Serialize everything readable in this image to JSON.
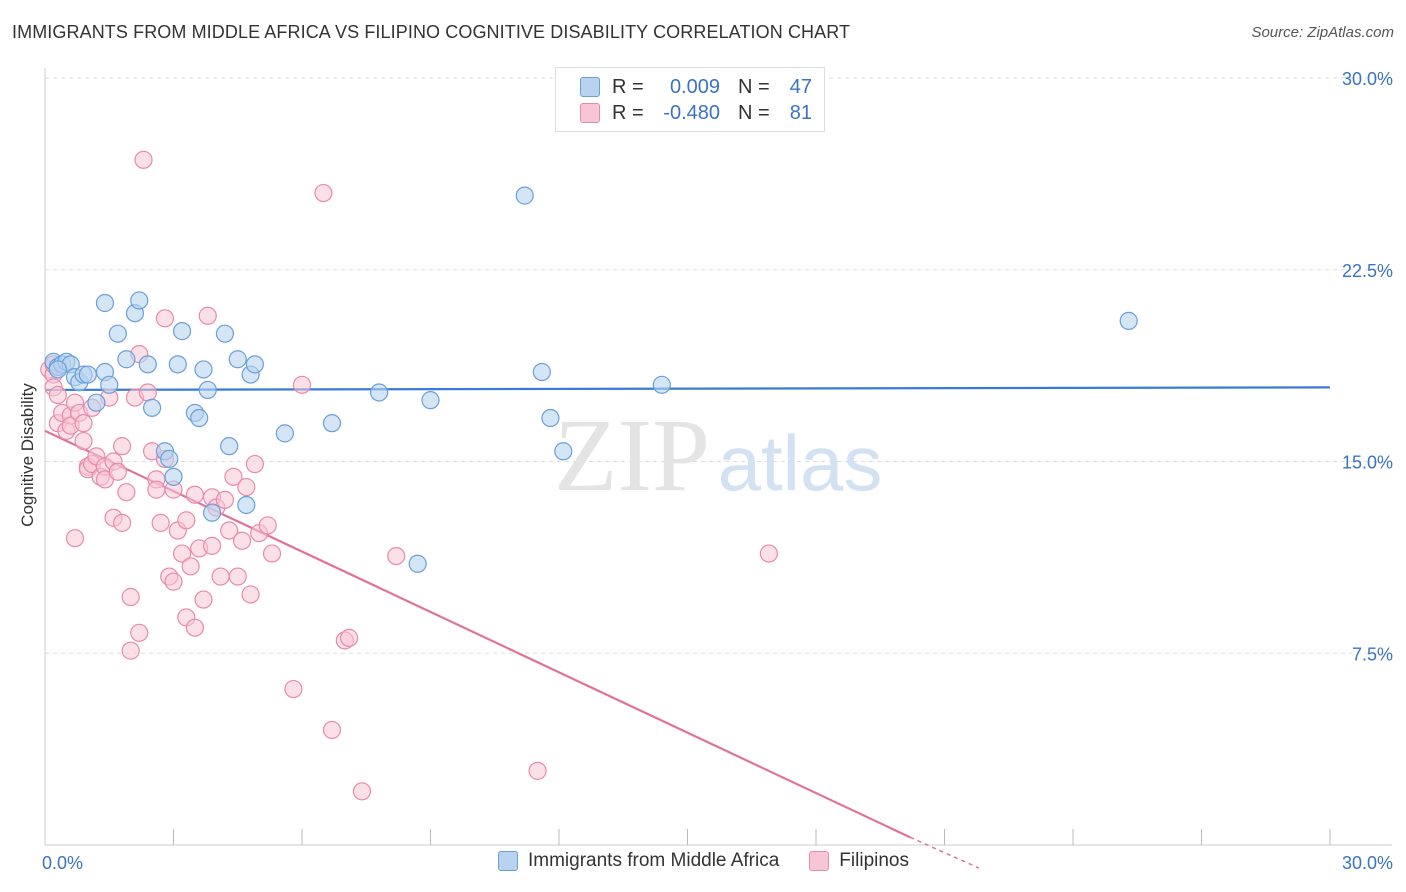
{
  "title": "IMMIGRANTS FROM MIDDLE AFRICA VS FILIPINO COGNITIVE DISABILITY CORRELATION CHART",
  "source": "Source: ZipAtlas.com",
  "watermark": {
    "zip": "ZIP",
    "atlas": "atlas"
  },
  "legend": {
    "rows": [
      {
        "r_label": "R =",
        "r_value": "0.009",
        "n_label": "N =",
        "n_value": "47"
      },
      {
        "r_label": "R =",
        "r_value": "-0.480",
        "n_label": "N =",
        "n_value": "81"
      }
    ]
  },
  "colors": {
    "blue_fill": "#b8d3f0",
    "blue_stroke": "#6a9fd8",
    "blue_line": "#3a7bd5",
    "pink_fill": "#f7c6d6",
    "pink_stroke": "#e98aaa",
    "pink_line": "#e0739a",
    "axis_text": "#3a73c4",
    "grid": "#dddddd"
  },
  "chart_data": {
    "type": "scatter",
    "title": "IMMIGRANTS FROM MIDDLE AFRICA VS FILIPINO COGNITIVE DISABILITY CORRELATION CHART",
    "xlabel": "",
    "ylabel": "Cognitive Disability",
    "xlim": [
      0,
      30
    ],
    "ylim": [
      0,
      30
    ],
    "x_tick_labels": [
      "0.0%",
      "30.0%"
    ],
    "y_ticks": [
      7.5,
      15.0,
      22.5,
      30.0
    ],
    "y_tick_labels": [
      "7.5%",
      "15.0%",
      "22.5%",
      "30.0%"
    ],
    "series": [
      {
        "name": "Immigrants from Middle Africa",
        "color": "blue",
        "trend": {
          "x": [
            0,
            30
          ],
          "y": [
            17.8,
            17.9
          ]
        },
        "points": [
          [
            0.2,
            18.9
          ],
          [
            0.3,
            18.7
          ],
          [
            0.4,
            18.8
          ],
          [
            0.5,
            18.9
          ],
          [
            0.6,
            18.8
          ],
          [
            0.7,
            18.3
          ],
          [
            0.8,
            18.1
          ],
          [
            0.9,
            18.4
          ],
          [
            1.0,
            18.4
          ],
          [
            1.2,
            17.3
          ],
          [
            1.4,
            18.5
          ],
          [
            1.5,
            18.0
          ],
          [
            1.4,
            21.2
          ],
          [
            1.7,
            20.0
          ],
          [
            1.9,
            19.0
          ],
          [
            2.1,
            20.8
          ],
          [
            2.2,
            21.3
          ],
          [
            2.4,
            18.8
          ],
          [
            2.5,
            17.1
          ],
          [
            2.8,
            15.4
          ],
          [
            2.9,
            15.1
          ],
          [
            3.0,
            14.4
          ],
          [
            3.1,
            18.8
          ],
          [
            3.2,
            20.1
          ],
          [
            3.5,
            16.9
          ],
          [
            3.6,
            16.7
          ],
          [
            3.7,
            18.6
          ],
          [
            3.8,
            17.8
          ],
          [
            3.9,
            13.0
          ],
          [
            4.2,
            20.0
          ],
          [
            4.3,
            15.6
          ],
          [
            4.5,
            19.0
          ],
          [
            4.7,
            13.3
          ],
          [
            4.8,
            18.4
          ],
          [
            4.9,
            18.8
          ],
          [
            5.6,
            16.1
          ],
          [
            6.7,
            16.5
          ],
          [
            7.8,
            17.7
          ],
          [
            8.7,
            11.0
          ],
          [
            9.0,
            17.4
          ],
          [
            11.2,
            25.4
          ],
          [
            11.6,
            18.5
          ],
          [
            11.8,
            16.7
          ],
          [
            12.1,
            15.4
          ],
          [
            14.4,
            18.0
          ],
          [
            25.3,
            20.5
          ],
          [
            0.3,
            18.6
          ]
        ]
      },
      {
        "name": "Filipinos",
        "color": "pink",
        "trend": {
          "x": [
            0,
            20.2
          ],
          "y": [
            16.2,
            0.3
          ]
        },
        "points": [
          [
            0.1,
            18.6
          ],
          [
            0.2,
            18.4
          ],
          [
            0.2,
            17.9
          ],
          [
            0.3,
            17.6
          ],
          [
            0.3,
            16.5
          ],
          [
            0.4,
            16.9
          ],
          [
            0.5,
            16.2
          ],
          [
            0.6,
            16.8
          ],
          [
            0.6,
            16.4
          ],
          [
            0.7,
            17.3
          ],
          [
            0.7,
            12.0
          ],
          [
            0.8,
            16.9
          ],
          [
            0.9,
            16.5
          ],
          [
            0.9,
            15.8
          ],
          [
            1.0,
            14.8
          ],
          [
            1.0,
            14.7
          ],
          [
            1.1,
            17.1
          ],
          [
            1.1,
            14.9
          ],
          [
            1.2,
            15.2
          ],
          [
            1.3,
            14.4
          ],
          [
            1.4,
            14.8
          ],
          [
            1.4,
            14.3
          ],
          [
            1.5,
            17.5
          ],
          [
            1.6,
            15.0
          ],
          [
            1.6,
            12.8
          ],
          [
            1.7,
            14.6
          ],
          [
            1.8,
            12.6
          ],
          [
            1.8,
            15.6
          ],
          [
            1.9,
            13.8
          ],
          [
            2.0,
            9.7
          ],
          [
            2.0,
            7.6
          ],
          [
            2.1,
            17.5
          ],
          [
            2.2,
            19.2
          ],
          [
            2.2,
            8.3
          ],
          [
            2.3,
            26.8
          ],
          [
            2.4,
            17.7
          ],
          [
            2.5,
            15.4
          ],
          [
            2.6,
            14.3
          ],
          [
            2.6,
            13.9
          ],
          [
            2.7,
            12.6
          ],
          [
            2.8,
            20.6
          ],
          [
            2.8,
            15.1
          ],
          [
            2.9,
            10.5
          ],
          [
            3.0,
            10.3
          ],
          [
            3.1,
            12.3
          ],
          [
            3.2,
            11.4
          ],
          [
            3.3,
            12.7
          ],
          [
            3.3,
            8.9
          ],
          [
            3.4,
            10.9
          ],
          [
            3.5,
            8.5
          ],
          [
            3.5,
            13.7
          ],
          [
            3.6,
            11.6
          ],
          [
            3.7,
            9.6
          ],
          [
            3.8,
            20.7
          ],
          [
            3.9,
            13.6
          ],
          [
            3.9,
            11.7
          ],
          [
            4.0,
            13.2
          ],
          [
            4.1,
            10.5
          ],
          [
            4.2,
            13.5
          ],
          [
            4.3,
            12.3
          ],
          [
            4.4,
            14.4
          ],
          [
            4.5,
            10.5
          ],
          [
            4.6,
            11.9
          ],
          [
            4.7,
            14.0
          ],
          [
            4.8,
            9.8
          ],
          [
            4.9,
            14.9
          ],
          [
            5.0,
            12.2
          ],
          [
            5.2,
            12.5
          ],
          [
            5.3,
            11.4
          ],
          [
            5.8,
            6.1
          ],
          [
            6.0,
            18.0
          ],
          [
            6.5,
            25.5
          ],
          [
            6.7,
            4.5
          ],
          [
            7.0,
            8.0
          ],
          [
            7.1,
            8.1
          ],
          [
            7.4,
            2.1
          ],
          [
            8.2,
            11.3
          ],
          [
            11.5,
            2.9
          ],
          [
            16.9,
            11.4
          ],
          [
            0.2,
            18.8
          ],
          [
            3.0,
            13.9
          ]
        ]
      }
    ],
    "legend_labels": [
      "Immigrants from Middle Africa",
      "Filipinos"
    ]
  }
}
